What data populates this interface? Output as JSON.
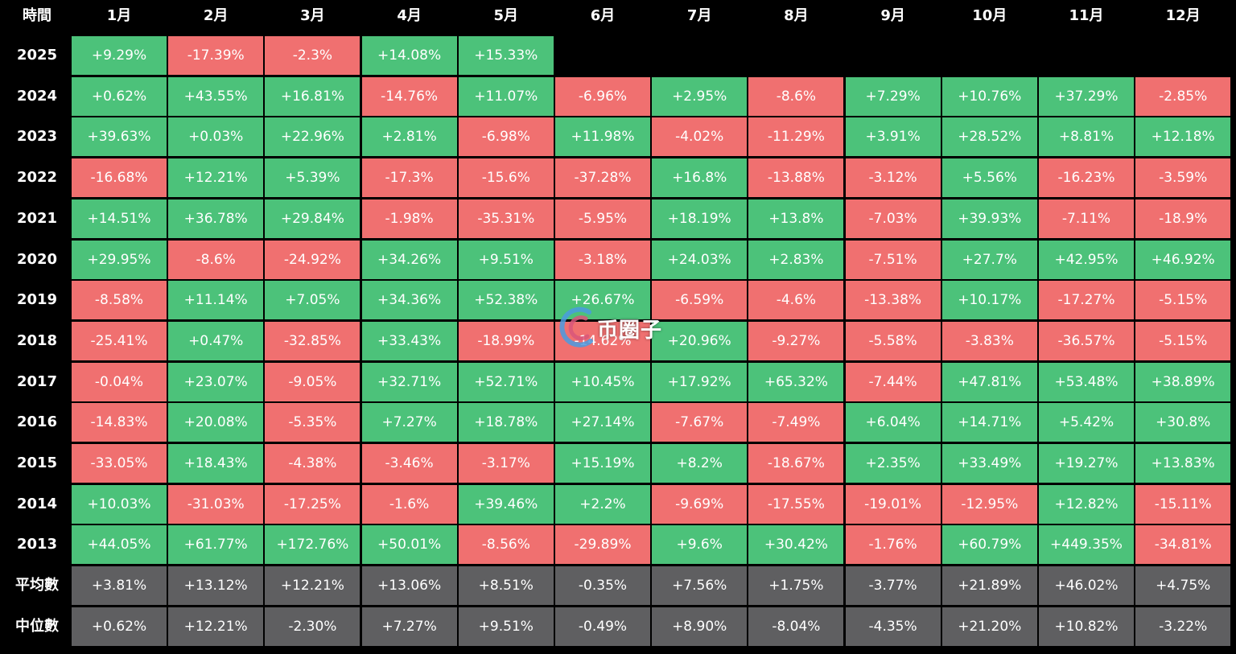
{
  "chart_data": {
    "type": "table",
    "corner_label": "時間",
    "columns": [
      "1月",
      "2月",
      "3月",
      "4月",
      "5月",
      "6月",
      "7月",
      "8月",
      "9月",
      "10月",
      "11月",
      "12月"
    ],
    "rows": [
      {
        "label": "2025",
        "values": [
          "+9.29%",
          "-17.39%",
          "-2.3%",
          "+14.08%",
          "+15.33%",
          null,
          null,
          null,
          null,
          null,
          null,
          null
        ]
      },
      {
        "label": "2024",
        "values": [
          "+0.62%",
          "+43.55%",
          "+16.81%",
          "-14.76%",
          "+11.07%",
          "-6.96%",
          "+2.95%",
          "-8.6%",
          "+7.29%",
          "+10.76%",
          "+37.29%",
          "-2.85%"
        ]
      },
      {
        "label": "2023",
        "values": [
          "+39.63%",
          "+0.03%",
          "+22.96%",
          "+2.81%",
          "-6.98%",
          "+11.98%",
          "-4.02%",
          "-11.29%",
          "+3.91%",
          "+28.52%",
          "+8.81%",
          "+12.18%"
        ]
      },
      {
        "label": "2022",
        "values": [
          "-16.68%",
          "+12.21%",
          "+5.39%",
          "-17.3%",
          "-15.6%",
          "-37.28%",
          "+16.8%",
          "-13.88%",
          "-3.12%",
          "+5.56%",
          "-16.23%",
          "-3.59%"
        ]
      },
      {
        "label": "2021",
        "values": [
          "+14.51%",
          "+36.78%",
          "+29.84%",
          "-1.98%",
          "-35.31%",
          "-5.95%",
          "+18.19%",
          "+13.8%",
          "-7.03%",
          "+39.93%",
          "-7.11%",
          "-18.9%"
        ]
      },
      {
        "label": "2020",
        "values": [
          "+29.95%",
          "-8.6%",
          "-24.92%",
          "+34.26%",
          "+9.51%",
          "-3.18%",
          "+24.03%",
          "+2.83%",
          "-7.51%",
          "+27.7%",
          "+42.95%",
          "+46.92%"
        ]
      },
      {
        "label": "2019",
        "values": [
          "-8.58%",
          "+11.14%",
          "+7.05%",
          "+34.36%",
          "+52.38%",
          "+26.67%",
          "-6.59%",
          "-4.6%",
          "-13.38%",
          "+10.17%",
          "-17.27%",
          "-5.15%"
        ]
      },
      {
        "label": "2018",
        "values": [
          "-25.41%",
          "+0.47%",
          "-32.85%",
          "+33.43%",
          "-18.99%",
          "-14.62%",
          "+20.96%",
          "-9.27%",
          "-5.58%",
          "-3.83%",
          "-36.57%",
          "-5.15%"
        ]
      },
      {
        "label": "2017",
        "values": [
          "-0.04%",
          "+23.07%",
          "-9.05%",
          "+32.71%",
          "+52.71%",
          "+10.45%",
          "+17.92%",
          "+65.32%",
          "-7.44%",
          "+47.81%",
          "+53.48%",
          "+38.89%"
        ]
      },
      {
        "label": "2016",
        "values": [
          "-14.83%",
          "+20.08%",
          "-5.35%",
          "+7.27%",
          "+18.78%",
          "+27.14%",
          "-7.67%",
          "-7.49%",
          "+6.04%",
          "+14.71%",
          "+5.42%",
          "+30.8%"
        ]
      },
      {
        "label": "2015",
        "values": [
          "-33.05%",
          "+18.43%",
          "-4.38%",
          "-3.46%",
          "-3.17%",
          "+15.19%",
          "+8.2%",
          "-18.67%",
          "+2.35%",
          "+33.49%",
          "+19.27%",
          "+13.83%"
        ]
      },
      {
        "label": "2014",
        "values": [
          "+10.03%",
          "-31.03%",
          "-17.25%",
          "-1.6%",
          "+39.46%",
          "+2.2%",
          "-9.69%",
          "-17.55%",
          "-19.01%",
          "-12.95%",
          "+12.82%",
          "-15.11%"
        ]
      },
      {
        "label": "2013",
        "values": [
          "+44.05%",
          "+61.77%",
          "+172.76%",
          "+50.01%",
          "-8.56%",
          "-29.89%",
          "+9.6%",
          "+30.42%",
          "-1.76%",
          "+60.79%",
          "+449.35%",
          "-34.81%"
        ]
      },
      {
        "label": "平均數",
        "stat": true,
        "values": [
          "+3.81%",
          "+13.12%",
          "+12.21%",
          "+13.06%",
          "+8.51%",
          "-0.35%",
          "+7.56%",
          "+1.75%",
          "-3.77%",
          "+21.89%",
          "+46.02%",
          "+4.75%"
        ]
      },
      {
        "label": "中位數",
        "stat": true,
        "values": [
          "+0.62%",
          "+12.21%",
          "-2.30%",
          "+7.27%",
          "+9.51%",
          "-0.49%",
          "+8.90%",
          "-8.04%",
          "-4.35%",
          "+21.20%",
          "+10.82%",
          "-3.22%"
        ]
      }
    ],
    "colors": {
      "background": "#000000",
      "positive": "#4cc27a",
      "negative": "#f07070",
      "statistic": "#5f5f61",
      "text": "#ffffff"
    }
  },
  "watermark": {
    "text": "币圈子",
    "icon": "coin-circle-logo-icon"
  }
}
